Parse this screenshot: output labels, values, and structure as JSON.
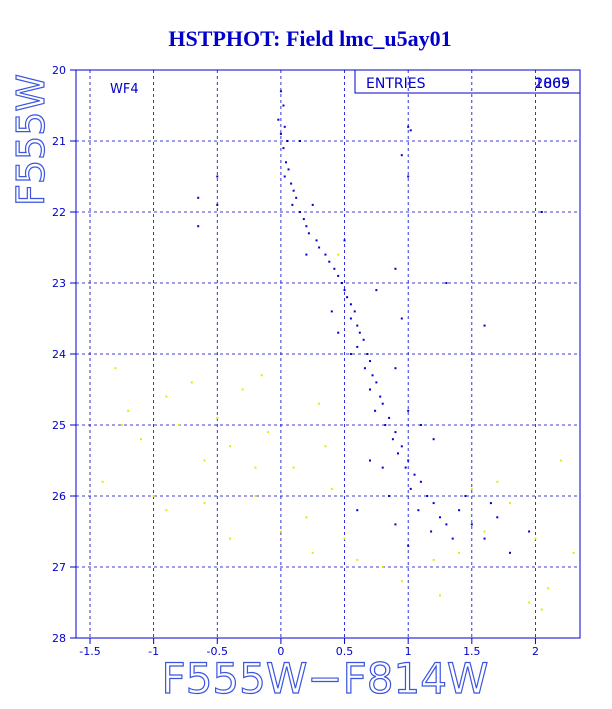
{
  "chart_data": {
    "type": "scatter",
    "title": "HSTPHOT: Field lmc_u5ay01",
    "x_label": "F555W−F814W",
    "y_label": "F555W",
    "panel_label": "WF4",
    "entries_label": "ENTRIES",
    "entries_values": [
      "1869",
      "2005"
    ],
    "xlim": [
      -1.61,
      2.35
    ],
    "ylim": [
      28,
      20
    ],
    "xticks": [
      -1.5,
      -1,
      -0.5,
      0,
      0.5,
      1,
      1.5,
      2
    ],
    "yticks": [
      20,
      21,
      22,
      23,
      24,
      25,
      26,
      27,
      28
    ],
    "grid": true,
    "series": [
      {
        "color": "#0000cc",
        "x": [
          0.0,
          0.02,
          -0.02,
          0.03,
          0.0,
          0.05,
          0.02,
          0.04,
          0.06,
          0.03,
          0.08,
          0.1,
          0.12,
          0.09,
          0.15,
          0.18,
          0.2,
          0.22,
          0.28,
          0.3,
          0.35,
          0.38,
          0.42,
          0.45,
          0.48,
          0.5,
          0.52,
          0.55,
          0.58,
          0.55,
          0.6,
          0.62,
          0.65,
          0.6,
          0.68,
          0.7,
          0.66,
          0.72,
          0.75,
          0.7,
          0.78,
          0.8,
          0.74,
          0.85,
          0.82,
          0.9,
          0.88,
          0.95,
          0.92,
          1.0,
          0.98,
          1.05,
          1.1,
          1.02,
          1.15,
          1.2,
          1.08,
          1.25,
          1.3,
          1.18,
          1.4,
          1.45,
          1.5,
          1.35,
          1.0,
          0.9,
          0.85,
          0.7,
          1.2,
          1.0,
          0.9,
          0.4,
          0.75,
          0.9,
          1.0,
          1.02,
          0.95,
          0.5,
          -0.65,
          -0.5,
          -0.65,
          -0.5,
          2.05,
          1.6,
          1.3,
          0.2,
          0.25,
          0.15,
          1.7,
          1.6,
          1.8,
          1.95,
          0.6,
          0.55,
          0.8,
          1.1,
          0.95,
          1.0,
          0.45,
          1.65
        ],
        "y": [
          20.3,
          20.5,
          20.7,
          20.8,
          20.9,
          21.0,
          21.1,
          21.3,
          21.4,
          21.5,
          21.6,
          21.7,
          21.8,
          21.9,
          22.0,
          22.1,
          22.2,
          22.3,
          22.4,
          22.5,
          22.6,
          22.7,
          22.8,
          22.9,
          23.0,
          23.1,
          23.2,
          23.3,
          23.4,
          23.5,
          23.6,
          23.7,
          23.8,
          23.9,
          24.0,
          24.1,
          24.2,
          24.3,
          24.4,
          24.5,
          24.6,
          24.7,
          24.8,
          24.9,
          25.0,
          25.1,
          25.2,
          25.3,
          25.4,
          25.5,
          25.6,
          25.7,
          25.8,
          25.9,
          26.0,
          26.1,
          26.2,
          26.3,
          26.4,
          26.5,
          26.2,
          26.0,
          26.4,
          26.6,
          26.7,
          26.4,
          26.0,
          25.5,
          25.2,
          24.8,
          24.2,
          23.4,
          23.1,
          22.8,
          20.8,
          20.85,
          21.2,
          22.4,
          21.8,
          21.5,
          22.2,
          21.9,
          22.0,
          23.6,
          23.0,
          22.6,
          21.9,
          21.0,
          26.3,
          26.6,
          26.8,
          26.5,
          26.2,
          24.0,
          25.6,
          25.0,
          23.5,
          21.5,
          23.7,
          26.1
        ]
      },
      {
        "color": "#e8e800",
        "x": [
          -1.3,
          -1.2,
          -1.1,
          -0.9,
          -0.8,
          -0.7,
          -0.6,
          -0.5,
          -0.4,
          -0.3,
          -0.2,
          -0.1,
          0.1,
          0.2,
          0.3,
          0.4,
          -0.9,
          -0.6,
          -0.4,
          -1.4,
          -1.0,
          0.0,
          0.25,
          0.5,
          0.6,
          0.8,
          1.2,
          1.4,
          1.6,
          1.8,
          2.0,
          2.1,
          2.05,
          1.95,
          2.3,
          1.7,
          1.5,
          1.25,
          0.95,
          -0.2,
          0.35,
          -1.25,
          -0.15,
          0.45,
          2.2
        ],
        "y": [
          24.2,
          24.8,
          25.2,
          24.6,
          25.0,
          24.4,
          25.5,
          24.9,
          25.3,
          24.5,
          26.0,
          25.1,
          25.6,
          26.3,
          24.7,
          25.9,
          26.2,
          26.1,
          26.6,
          25.8,
          26.0,
          26.5,
          26.8,
          26.6,
          26.9,
          27.0,
          26.9,
          26.8,
          26.5,
          26.1,
          26.6,
          27.3,
          27.6,
          27.5,
          26.8,
          25.8,
          25.9,
          27.4,
          27.2,
          25.6,
          25.3,
          25.0,
          24.3,
          22.6,
          25.5
        ]
      }
    ]
  }
}
